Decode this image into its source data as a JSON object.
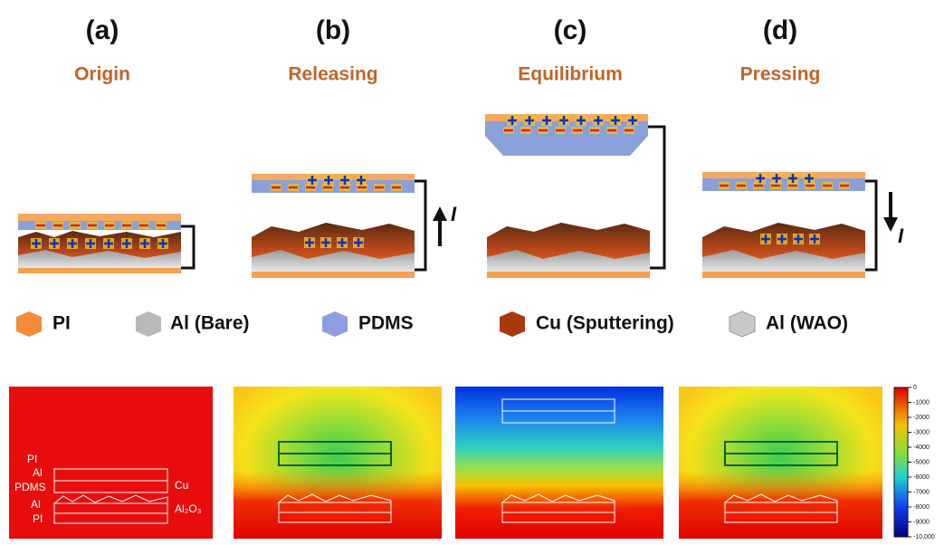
{
  "panels": [
    {
      "label": "(a)",
      "title": "Origin"
    },
    {
      "label": "(b)",
      "title": "Releasing",
      "current": "I"
    },
    {
      "label": "(c)",
      "title": "Equilibrium"
    },
    {
      "label": "(d)",
      "title": "Pressing",
      "current": "I"
    }
  ],
  "legend": [
    "PI",
    "Al (Bare)",
    "PDMS",
    "Cu (Sputtering)",
    "Al (WAO)"
  ],
  "simulation": {
    "layer_labels": [
      "PI",
      "Al",
      "PDMS",
      "Al",
      "PI"
    ],
    "cu_label": "Cu",
    "oxide_label": "Al₂O₃"
  },
  "colorbar": {
    "range": [
      -10000,
      0
    ],
    "ticks": [
      0,
      -1000,
      -2000,
      -3000,
      -4000,
      -5000,
      -6000,
      -7000,
      -8000,
      -9000,
      {
        "value": -10000,
        "label": "-10,000"
      }
    ]
  }
}
